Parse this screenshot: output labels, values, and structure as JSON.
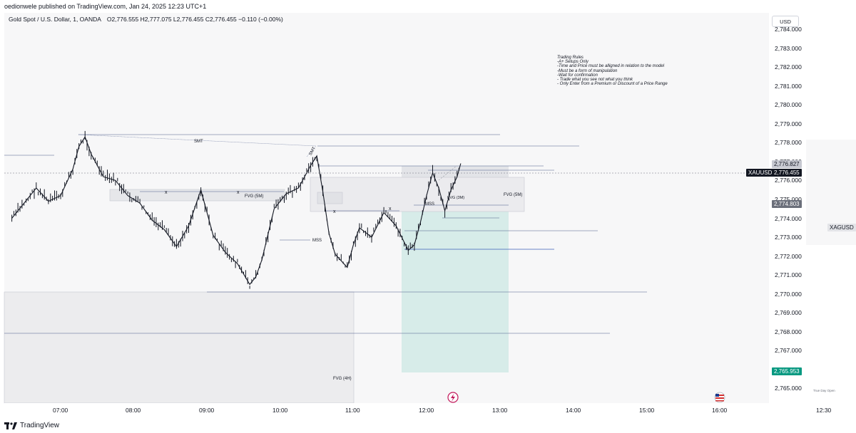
{
  "header": {
    "published_line": "oedionwele published on TradingView.com, Jan 24, 2025 12:23 UTC+1"
  },
  "symbol": {
    "name": "Gold Spot / U.S. Dollar, 1, OANDA",
    "ohlc": "O2,776.555  H2,777.075  L2,776.455  C2,776.455  −0.110 (−0.00%)"
  },
  "currency_button": "USD",
  "more_menu": "···",
  "rules_text": "Trading Rules\n-A+ Setups Only\n-Time and Price must be alligned in relation to the model\n-Must be a form of manipulation\n-Wait for confirmation\n- Trade what you see not what you think\n- Only Enter from a Premium or Discount of a Price Range",
  "badges": {
    "symbol_tag": "XAUUSD",
    "last_price": "2,776.455",
    "target_price": "2,776.827",
    "entry_price": "2,774.803",
    "stop_price": "2,765.953",
    "compare_tag": "XAGUSD",
    "day_open": "True Day Open"
  },
  "annotations": {
    "smt_1": "SMT",
    "smt_2": "SMT",
    "fvg_5m_1": "FVG (5M)",
    "fvg_5m_2": "FVG (5M)",
    "fvg_3m": "FVG (3M)",
    "fvg_4h": "FVG (4H)",
    "mss_1": "MSS",
    "mss_2": "MSS",
    "x_mark": "x"
  },
  "footer": {
    "brand": "TradingView"
  },
  "colors": {
    "background": "#f7f7f8",
    "candle": "#131722",
    "line": "#4a5a8a",
    "target_zone": "#d7ece9",
    "badge_dark": "#131722",
    "badge_gray": "#6b6f7a",
    "badge_green": "#089981",
    "stop_line": "#3d5fb8"
  },
  "chart_data": {
    "type": "candlestick",
    "symbol": "XAUUSD",
    "timeframe": "1",
    "y_ticks": [
      2784,
      2783,
      2782,
      2781,
      2780,
      2779,
      2778,
      2777,
      2776,
      2775,
      2774,
      2773,
      2772,
      2771,
      2770,
      2769,
      2768,
      2767,
      2766,
      2765
    ],
    "y_tick_labels": [
      "2,784.000",
      "2,783.000",
      "2,782.000",
      "2,781.000",
      "2,780.000",
      "2,779.000",
      "2,778.000",
      "2,777.000",
      "2,776.000",
      "2,775.000",
      "2,774.000",
      "2,773.000",
      "2,772.000",
      "2,771.000",
      "2,770.000",
      "2,769.000",
      "2,768.000",
      "2,767.000",
      "2,766.000",
      "2,765.000"
    ],
    "ylim": [
      2764.35,
      2784.55
    ],
    "x_tick_labels": [
      "07:00",
      "08:00",
      "09:00",
      "10:00",
      "11:00",
      "12:00",
      "13:00",
      "14:00",
      "15:00",
      "16:00",
      "12:30"
    ],
    "path_points": [
      [
        "06:20",
        2774.0
      ],
      [
        "06:30",
        2774.8
      ],
      [
        "06:40",
        2775.6
      ],
      [
        "06:50",
        2774.9
      ],
      [
        "07:00",
        2775.2
      ],
      [
        "07:10",
        2776.6
      ],
      [
        "07:15",
        2777.8
      ],
      [
        "07:20",
        2778.3
      ],
      [
        "07:25",
        2777.4
      ],
      [
        "07:35",
        2776.2
      ],
      [
        "07:45",
        2776.0
      ],
      [
        "07:55",
        2775.2
      ],
      [
        "08:05",
        2774.8
      ],
      [
        "08:15",
        2773.9
      ],
      [
        "08:25",
        2773.4
      ],
      [
        "08:35",
        2772.5
      ],
      [
        "08:45",
        2773.6
      ],
      [
        "08:55",
        2775.5
      ],
      [
        "09:05",
        2773.1
      ],
      [
        "09:15",
        2772.2
      ],
      [
        "09:25",
        2771.6
      ],
      [
        "09:35",
        2770.5
      ],
      [
        "09:40",
        2770.9
      ],
      [
        "09:45",
        2771.8
      ],
      [
        "09:55",
        2774.5
      ],
      [
        "10:05",
        2775.3
      ],
      [
        "10:15",
        2775.6
      ],
      [
        "10:25",
        2776.8
      ],
      [
        "10:30",
        2777.3
      ],
      [
        "10:35",
        2775.4
      ],
      [
        "10:40",
        2773.2
      ],
      [
        "10:45",
        2772.1
      ],
      [
        "10:55",
        2771.4
      ],
      [
        "11:00",
        2772.6
      ],
      [
        "11:05",
        2773.5
      ],
      [
        "11:15",
        2773.0
      ],
      [
        "11:25",
        2774.3
      ],
      [
        "11:35",
        2773.6
      ],
      [
        "11:45",
        2772.3
      ],
      [
        "11:50",
        2772.6
      ],
      [
        "11:55",
        2773.8
      ],
      [
        "12:00",
        2775.2
      ],
      [
        "12:05",
        2776.4
      ],
      [
        "12:10",
        2775.6
      ],
      [
        "12:15",
        2774.4
      ],
      [
        "12:20",
        2775.5
      ],
      [
        "12:25",
        2776.2
      ],
      [
        "12:28",
        2776.9
      ]
    ],
    "levels": {
      "last": 2776.455,
      "target": 2776.827,
      "entry": 2774.803,
      "stop": 2765.953
    }
  }
}
